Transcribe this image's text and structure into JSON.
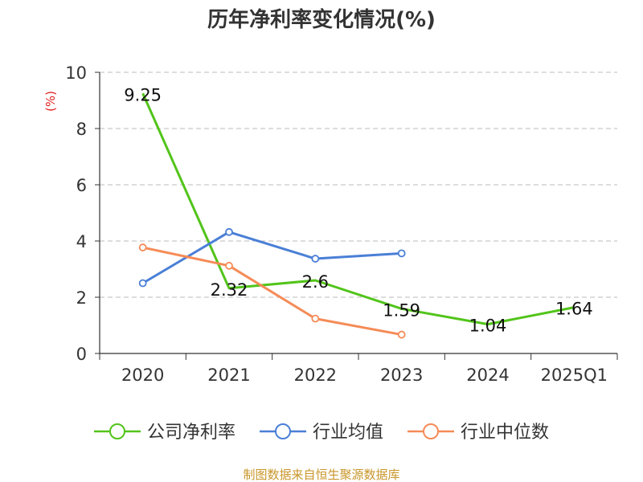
{
  "colors": {
    "company": "#52c41a",
    "industry_avg": "#4a7fd6",
    "industry_median": "#f58b57",
    "grid": "#bbbbbb",
    "axis": "#333333",
    "ylabel": "#e02020",
    "source": "#c8962a"
  },
  "source_text": "制图数据来自恒生聚源数据库",
  "chart_data": {
    "type": "line",
    "title": "历年净利率变化情况(%)",
    "xlabel": "",
    "ylabel": "(%)",
    "ylim": [
      0,
      10
    ],
    "yticks": [
      0,
      2,
      4,
      6,
      8,
      10
    ],
    "ytick_labels": [
      "0",
      "2",
      "4",
      "6",
      "8",
      "10"
    ],
    "grid": true,
    "legend_position": "bottom",
    "categories": [
      "2020",
      "2021",
      "2022",
      "2023",
      "2024",
      "2025Q1"
    ],
    "series": [
      {
        "name": "公司净利率",
        "color_key": "company",
        "values": [
          9.25,
          2.32,
          2.6,
          1.59,
          1.04,
          1.64
        ],
        "labels": [
          "9.25",
          "2.32",
          "2.6",
          "1.59",
          "1.04",
          "1.64"
        ],
        "show_labels": true,
        "show_markers": false
      },
      {
        "name": "行业均值",
        "color_key": "industry_avg",
        "values": [
          2.5,
          4.32,
          3.37,
          3.56,
          null,
          null
        ],
        "show_labels": false,
        "show_markers": true
      },
      {
        "name": "行业中位数",
        "color_key": "industry_median",
        "values": [
          3.77,
          3.12,
          1.24,
          0.67,
          null,
          null
        ],
        "show_labels": false,
        "show_markers": true
      }
    ]
  }
}
